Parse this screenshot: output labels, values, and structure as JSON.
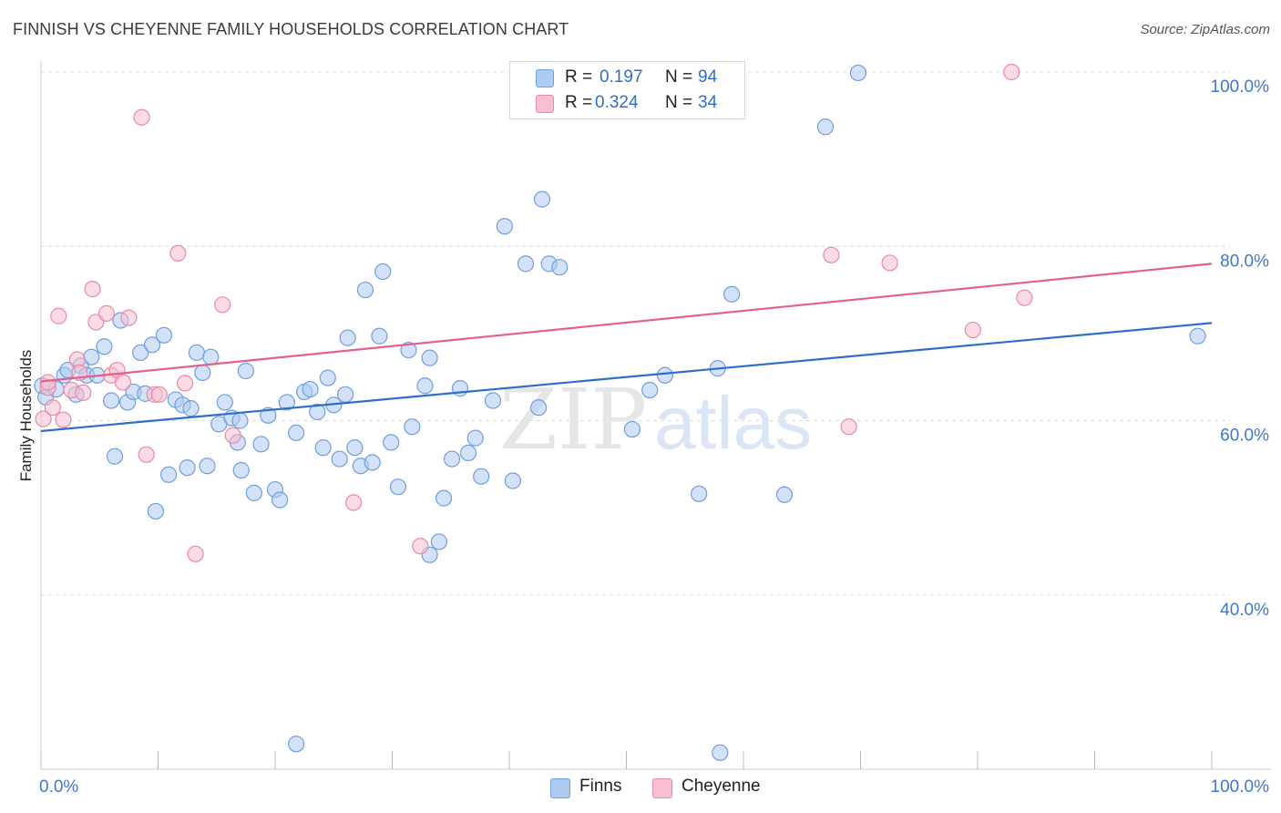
{
  "title": "FINNISH VS CHEYENNE FAMILY HOUSEHOLDS CORRELATION CHART",
  "source": "Source: ZipAtlas.com",
  "watermark": {
    "zip": "ZIP",
    "atlas": "atlas"
  },
  "legend": {
    "finns": {
      "r_label": "R =",
      "r_value": "0.197",
      "n_label": "N =",
      "n_value": "94"
    },
    "cheyenne": {
      "r_label": "R =",
      "r_value": "0.324",
      "n_label": "N =",
      "n_value": "34"
    }
  },
  "bottom_legend": {
    "finns": "Finns",
    "cheyenne": "Cheyenne"
  },
  "colors": {
    "finns_fill": "#aecbf2",
    "finns_stroke": "#6f9fdc",
    "finns_line": "#2f6fc7",
    "cheyenne_fill": "#f7bfd0",
    "cheyenne_stroke": "#e88aa8",
    "cheyenne_line": "#e0628c",
    "axis_text": "#3f78c9",
    "grid": "#dddddd"
  },
  "chart_data": {
    "type": "scatter",
    "title": "FINNISH VS CHEYENNE FAMILY HOUSEHOLDS CORRELATION CHART",
    "xlabel": "",
    "ylabel": "Family Households",
    "x_tick_labels": [
      "0.0%",
      "100.0%"
    ],
    "y_tick_labels": [
      "40.0%",
      "60.0%",
      "80.0%",
      "100.0%"
    ],
    "y_ticks": [
      40,
      60,
      80,
      100
    ],
    "xlim": [
      0,
      100
    ],
    "ylim": [
      20,
      101
    ],
    "grid": true,
    "series": [
      {
        "name": "Finns",
        "r": 0.197,
        "n": 94,
        "trend": [
          [
            0,
            58.8
          ],
          [
            100,
            71.2
          ]
        ],
        "points": [
          [
            0.1,
            64.0
          ],
          [
            0.4,
            62.7
          ],
          [
            1.3,
            63.6
          ],
          [
            2.0,
            65.2
          ],
          [
            2.3,
            65.8
          ],
          [
            3.0,
            63.0
          ],
          [
            3.4,
            66.3
          ],
          [
            3.9,
            65.2
          ],
          [
            4.3,
            67.3
          ],
          [
            4.8,
            65.2
          ],
          [
            5.4,
            68.5
          ],
          [
            6.0,
            62.3
          ],
          [
            6.3,
            55.9
          ],
          [
            6.8,
            71.5
          ],
          [
            7.4,
            62.1
          ],
          [
            7.9,
            63.3
          ],
          [
            8.5,
            67.8
          ],
          [
            8.9,
            63.1
          ],
          [
            9.5,
            68.7
          ],
          [
            9.8,
            49.6
          ],
          [
            10.5,
            69.8
          ],
          [
            10.9,
            53.8
          ],
          [
            11.5,
            62.4
          ],
          [
            12.1,
            61.8
          ],
          [
            12.5,
            54.6
          ],
          [
            12.8,
            61.4
          ],
          [
            13.3,
            67.8
          ],
          [
            13.8,
            65.5
          ],
          [
            14.2,
            54.8
          ],
          [
            14.5,
            67.3
          ],
          [
            15.2,
            59.6
          ],
          [
            15.7,
            62.1
          ],
          [
            16.3,
            60.3
          ],
          [
            16.8,
            57.5
          ],
          [
            17.1,
            54.3
          ],
          [
            17.5,
            65.7
          ],
          [
            18.2,
            51.7
          ],
          [
            18.8,
            57.3
          ],
          [
            19.4,
            60.6
          ],
          [
            20.0,
            52.1
          ],
          [
            20.4,
            50.9
          ],
          [
            21.0,
            62.1
          ],
          [
            21.8,
            58.6
          ],
          [
            22.5,
            63.3
          ],
          [
            23.0,
            63.6
          ],
          [
            23.6,
            61.0
          ],
          [
            24.1,
            56.9
          ],
          [
            24.5,
            64.9
          ],
          [
            25.0,
            61.8
          ],
          [
            25.5,
            55.6
          ],
          [
            26.2,
            69.5
          ],
          [
            26.8,
            56.9
          ],
          [
            27.3,
            54.8
          ],
          [
            27.7,
            75.0
          ],
          [
            28.3,
            55.2
          ],
          [
            28.9,
            69.7
          ],
          [
            29.2,
            77.1
          ],
          [
            29.9,
            57.5
          ],
          [
            30.5,
            52.4
          ],
          [
            31.4,
            68.1
          ],
          [
            31.7,
            59.3
          ],
          [
            32.8,
            64.0
          ],
          [
            33.2,
            67.2
          ],
          [
            34.0,
            46.1
          ],
          [
            34.4,
            51.1
          ],
          [
            35.1,
            55.6
          ],
          [
            35.8,
            63.7
          ],
          [
            36.5,
            56.3
          ],
          [
            37.1,
            58.0
          ],
          [
            37.6,
            53.6
          ],
          [
            38.6,
            62.3
          ],
          [
            39.6,
            82.3
          ],
          [
            40.3,
            53.1
          ],
          [
            41.4,
            78.0
          ],
          [
            42.5,
            61.5
          ],
          [
            42.8,
            85.4
          ],
          [
            43.4,
            78.0
          ],
          [
            44.3,
            77.6
          ],
          [
            46.0,
            100.2
          ],
          [
            50.5,
            59.0
          ],
          [
            52.0,
            63.5
          ],
          [
            53.3,
            65.2
          ],
          [
            56.2,
            51.6
          ],
          [
            57.8,
            66.0
          ],
          [
            59.0,
            74.5
          ],
          [
            63.5,
            51.5
          ],
          [
            67.0,
            93.7
          ],
          [
            69.8,
            99.9
          ],
          [
            98.8,
            69.7
          ],
          [
            21.8,
            22.9
          ],
          [
            58.0,
            21.9
          ],
          [
            33.2,
            44.6
          ],
          [
            26.0,
            63.0
          ],
          [
            17.0,
            60.0
          ]
        ]
      },
      {
        "name": "Cheyenne",
        "r": 0.324,
        "n": 34,
        "trend": [
          [
            0,
            64.5
          ],
          [
            100,
            78.0
          ]
        ],
        "points": [
          [
            0.2,
            60.2
          ],
          [
            0.6,
            63.8
          ],
          [
            1.0,
            61.5
          ],
          [
            1.5,
            72.0
          ],
          [
            1.9,
            60.1
          ],
          [
            2.6,
            63.5
          ],
          [
            3.1,
            67.0
          ],
          [
            3.6,
            63.2
          ],
          [
            4.4,
            75.1
          ],
          [
            4.7,
            71.3
          ],
          [
            5.6,
            72.3
          ],
          [
            6.0,
            65.2
          ],
          [
            6.5,
            65.8
          ],
          [
            7.0,
            64.4
          ],
          [
            7.5,
            71.8
          ],
          [
            8.6,
            94.8
          ],
          [
            9.0,
            56.1
          ],
          [
            9.7,
            63.0
          ],
          [
            10.1,
            63.0
          ],
          [
            11.7,
            79.2
          ],
          [
            12.3,
            64.3
          ],
          [
            13.2,
            44.7
          ],
          [
            15.5,
            73.3
          ],
          [
            16.4,
            58.3
          ],
          [
            26.7,
            50.6
          ],
          [
            32.4,
            45.6
          ],
          [
            67.5,
            79.0
          ],
          [
            69.0,
            59.3
          ],
          [
            72.5,
            78.1
          ],
          [
            79.6,
            70.4
          ],
          [
            82.9,
            100.0
          ],
          [
            84.0,
            74.1
          ],
          [
            3.3,
            65.5
          ],
          [
            0.6,
            64.4
          ]
        ]
      }
    ]
  }
}
